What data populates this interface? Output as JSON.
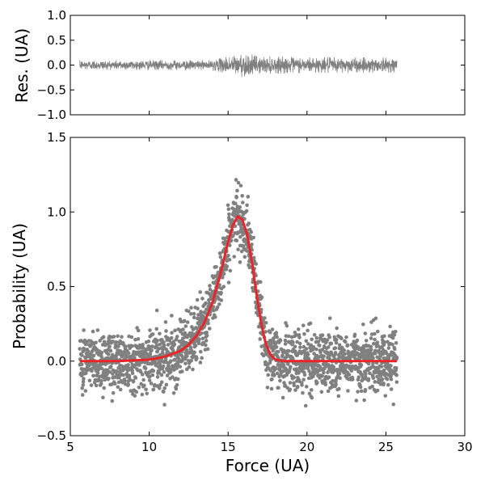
{
  "chart_data": [
    {
      "type": "line",
      "panel": "residuals",
      "xlabel": "",
      "ylabel": "Res. (UA)",
      "xlim": [
        5,
        30
      ],
      "ylim": [
        -1.0,
        1.0
      ],
      "xticks": [
        5,
        10,
        15,
        20,
        25,
        30
      ],
      "yticks": [
        -1.0,
        -0.5,
        0.0,
        0.5,
        1.0
      ],
      "ytick_labels": [
        "−1.0",
        "−0.5",
        "0.0",
        "0.5",
        "1.0"
      ],
      "show_x_tick_labels": false,
      "grid": false,
      "series": [
        {
          "color": "#808080",
          "x_range": [
            5.6,
            25.7
          ],
          "n_points": 2000,
          "amplitude_profile": [
            [
              5.6,
              0.1
            ],
            [
              10,
              0.1
            ],
            [
              14,
              0.1
            ],
            [
              15.5,
              0.22
            ],
            [
              16.0,
              0.25
            ],
            [
              17.0,
              0.18
            ],
            [
              20,
              0.16
            ],
            [
              25.7,
              0.15
            ]
          ]
        }
      ]
    },
    {
      "type": "scatter",
      "panel": "main",
      "xlabel": "Force (UA)",
      "ylabel": "Probability (UA)",
      "xlim": [
        5,
        30
      ],
      "ylim": [
        -0.5,
        1.5
      ],
      "xticks": [
        5,
        10,
        15,
        20,
        25,
        30
      ],
      "xtick_labels": [
        "5",
        "10",
        "15",
        "20",
        "25",
        "30"
      ],
      "yticks": [
        -0.5,
        0.0,
        0.5,
        1.0,
        1.5
      ],
      "ytick_labels": [
        "−0.5",
        "0.0",
        "0.5",
        "1.0",
        "1.5"
      ],
      "grid": false,
      "series": [
        {
          "kind": "scatter",
          "color": "#808080",
          "x_range": [
            5.6,
            25.7
          ],
          "n_points": 2000,
          "noise_sigma": 0.1
        },
        {
          "kind": "fit",
          "color": "#e8262a",
          "x": [
            5.6,
            8,
            10,
            11,
            12,
            12.5,
            13,
            13.5,
            14,
            14.5,
            15,
            15.3,
            15.6,
            15.9,
            16.2,
            16.5,
            16.8,
            17.1,
            17.4,
            17.7,
            18,
            18.5,
            19,
            20,
            22,
            25.7
          ],
          "y": [
            0.0,
            0.0,
            0.01,
            0.03,
            0.07,
            0.11,
            0.17,
            0.26,
            0.39,
            0.58,
            0.8,
            0.91,
            0.97,
            0.95,
            0.85,
            0.67,
            0.45,
            0.25,
            0.11,
            0.04,
            0.01,
            0.0,
            0.0,
            0.0,
            0.0,
            0.0
          ]
        }
      ]
    }
  ]
}
